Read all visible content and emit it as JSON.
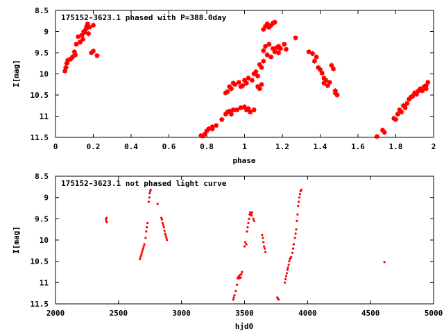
{
  "chart_data": [
    {
      "type": "scatter",
      "title": "175152-3623.1 phased with P=388.0day",
      "xlabel": "phase",
      "ylabel": "I[mag]",
      "xlim": [
        0,
        2
      ],
      "ylim": [
        8.5,
        11.5
      ],
      "y_inverted": true,
      "grid": false,
      "marker_color": "#ff0000",
      "x_ticks": [
        "0",
        "0.2",
        "0.4",
        "0.6",
        "0.8",
        "1",
        "1.2",
        "1.4",
        "1.6",
        "1.8",
        "2"
      ],
      "y_ticks": [
        "8.5",
        "9",
        "9.5",
        "10",
        "10.5",
        "11",
        "11.5"
      ],
      "points": [
        [
          0.05,
          9.93
        ],
        [
          0.055,
          9.85
        ],
        [
          0.06,
          9.75
        ],
        [
          0.065,
          9.68
        ],
        [
          0.08,
          9.65
        ],
        [
          0.09,
          9.6
        ],
        [
          0.1,
          9.48
        ],
        [
          0.105,
          9.55
        ],
        [
          0.11,
          9.3
        ],
        [
          0.12,
          9.12
        ],
        [
          0.13,
          9.25
        ],
        [
          0.14,
          9.08
        ],
        [
          0.145,
          9.18
        ],
        [
          0.15,
          9.0
        ],
        [
          0.155,
          9.02
        ],
        [
          0.16,
          8.95
        ],
        [
          0.165,
          8.88
        ],
        [
          0.17,
          8.82
        ],
        [
          0.175,
          9.05
        ],
        [
          0.18,
          8.9
        ],
        [
          0.2,
          8.85
        ],
        [
          0.19,
          9.5
        ],
        [
          0.2,
          9.46
        ],
        [
          0.22,
          9.57
        ],
        [
          0.77,
          11.46
        ],
        [
          0.78,
          11.47
        ],
        [
          0.79,
          11.42
        ],
        [
          0.8,
          11.35
        ],
        [
          0.81,
          11.3
        ],
        [
          0.83,
          11.25
        ],
        [
          0.85,
          11.22
        ],
        [
          0.83,
          11.3
        ],
        [
          0.88,
          11.08
        ],
        [
          0.9,
          10.95
        ],
        [
          0.91,
          10.9
        ],
        [
          0.92,
          10.88
        ],
        [
          0.93,
          10.95
        ],
        [
          0.94,
          10.85
        ],
        [
          0.9,
          10.45
        ],
        [
          0.91,
          10.42
        ],
        [
          0.92,
          10.3
        ],
        [
          0.93,
          10.35
        ],
        [
          0.94,
          10.22
        ],
        [
          0.95,
          10.25
        ],
        [
          0.97,
          10.2
        ],
        [
          0.98,
          10.3
        ],
        [
          0.99,
          10.28
        ],
        [
          1.0,
          10.15
        ],
        [
          1.01,
          10.22
        ],
        [
          1.02,
          10.1
        ],
        [
          0.96,
          10.85
        ],
        [
          0.98,
          10.8
        ],
        [
          1.0,
          10.78
        ],
        [
          1.01,
          10.85
        ],
        [
          1.02,
          10.82
        ],
        [
          1.03,
          10.9
        ],
        [
          1.05,
          10.85
        ],
        [
          1.04,
          10.15
        ],
        [
          1.05,
          10.0
        ],
        [
          1.06,
          9.95
        ],
        [
          1.07,
          10.05
        ],
        [
          1.08,
          9.78
        ],
        [
          1.09,
          9.85
        ],
        [
          1.07,
          10.3
        ],
        [
          1.08,
          10.35
        ],
        [
          1.09,
          10.25
        ],
        [
          1.1,
          9.7
        ],
        [
          1.1,
          9.45
        ],
        [
          1.11,
          9.35
        ],
        [
          1.12,
          9.55
        ],
        [
          1.13,
          9.3
        ],
        [
          1.14,
          9.6
        ],
        [
          1.15,
          9.4
        ],
        [
          1.16,
          9.48
        ],
        [
          1.17,
          9.38
        ],
        [
          1.18,
          9.5
        ],
        [
          1.18,
          9.35
        ],
        [
          1.19,
          9.4
        ],
        [
          1.1,
          8.95
        ],
        [
          1.11,
          8.88
        ],
        [
          1.12,
          8.82
        ],
        [
          1.13,
          8.9
        ],
        [
          1.14,
          8.85
        ],
        [
          1.15,
          8.8
        ],
        [
          1.16,
          8.78
        ],
        [
          1.21,
          9.3
        ],
        [
          1.22,
          9.42
        ],
        [
          1.27,
          9.15
        ],
        [
          1.34,
          9.48
        ],
        [
          1.36,
          9.52
        ],
        [
          1.37,
          9.7
        ],
        [
          1.38,
          9.6
        ],
        [
          1.39,
          9.85
        ],
        [
          1.4,
          9.9
        ],
        [
          1.41,
          9.98
        ],
        [
          1.42,
          10.1
        ],
        [
          1.42,
          10.22
        ],
        [
          1.43,
          10.15
        ],
        [
          1.44,
          10.28
        ],
        [
          1.45,
          10.2
        ],
        [
          1.46,
          9.8
        ],
        [
          1.47,
          9.88
        ],
        [
          1.48,
          10.4
        ],
        [
          1.49,
          10.5
        ],
        [
          1.48,
          10.45
        ],
        [
          1.7,
          11.48
        ],
        [
          1.73,
          11.33
        ],
        [
          1.74,
          11.38
        ],
        [
          1.79,
          11.05
        ],
        [
          1.8,
          11.08
        ],
        [
          1.81,
          10.95
        ],
        [
          1.82,
          10.85
        ],
        [
          1.83,
          10.9
        ],
        [
          1.84,
          10.75
        ],
        [
          1.85,
          10.8
        ],
        [
          1.86,
          10.7
        ],
        [
          1.87,
          10.6
        ],
        [
          1.88,
          10.55
        ],
        [
          1.89,
          10.52
        ],
        [
          1.9,
          10.45
        ],
        [
          1.91,
          10.48
        ],
        [
          1.92,
          10.4
        ],
        [
          1.93,
          10.35
        ],
        [
          1.94,
          10.4
        ],
        [
          1.95,
          10.3
        ],
        [
          1.96,
          10.35
        ],
        [
          1.97,
          10.2
        ],
        [
          1.96,
          10.28
        ]
      ]
    },
    {
      "type": "scatter",
      "title": "175152-3623.1 not phased light curve",
      "xlabel": "hjd0",
      "ylabel": "I[mag]",
      "xlim": [
        2000,
        5000
      ],
      "ylim": [
        8.5,
        11.5
      ],
      "y_inverted": true,
      "grid": false,
      "marker_color": "#ff0000",
      "x_ticks": [
        "2000",
        "2500",
        "3000",
        "3500",
        "4000",
        "4500",
        "5000"
      ],
      "y_ticks": [
        "8.5",
        "9",
        "9.5",
        "10",
        "10.5",
        "11",
        "11.5"
      ],
      "points": [
        [
          2400,
          9.5
        ],
        [
          2402,
          9.55
        ],
        [
          2405,
          9.48
        ],
        [
          2407,
          9.58
        ],
        [
          2670,
          10.45
        ],
        [
          2675,
          10.4
        ],
        [
          2680,
          10.35
        ],
        [
          2685,
          10.3
        ],
        [
          2690,
          10.25
        ],
        [
          2695,
          10.2
        ],
        [
          2700,
          10.15
        ],
        [
          2705,
          10.1
        ],
        [
          2715,
          9.95
        ],
        [
          2720,
          9.8
        ],
        [
          2725,
          9.7
        ],
        [
          2730,
          9.6
        ],
        [
          2740,
          9.1
        ],
        [
          2745,
          9.0
        ],
        [
          2748,
          8.9
        ],
        [
          2752,
          8.85
        ],
        [
          2755,
          8.82
        ],
        [
          2810,
          9.15
        ],
        [
          2840,
          9.48
        ],
        [
          2845,
          9.52
        ],
        [
          2850,
          9.6
        ],
        [
          2855,
          9.65
        ],
        [
          2860,
          9.7
        ],
        [
          2865,
          9.78
        ],
        [
          2870,
          9.85
        ],
        [
          2875,
          9.9
        ],
        [
          2880,
          9.95
        ],
        [
          2885,
          10.0
        ],
        [
          3410,
          11.4
        ],
        [
          3415,
          11.35
        ],
        [
          3420,
          11.3
        ],
        [
          3430,
          11.2
        ],
        [
          3440,
          11.05
        ],
        [
          3445,
          10.9
        ],
        [
          3450,
          10.88
        ],
        [
          3455,
          10.85
        ],
        [
          3460,
          10.9
        ],
        [
          3465,
          10.82
        ],
        [
          3470,
          10.88
        ],
        [
          3475,
          10.8
        ],
        [
          3480,
          10.75
        ],
        [
          3500,
          10.15
        ],
        [
          3505,
          10.05
        ],
        [
          3515,
          10.1
        ],
        [
          3520,
          9.8
        ],
        [
          3525,
          9.7
        ],
        [
          3530,
          9.6
        ],
        [
          3535,
          9.5
        ],
        [
          3540,
          9.4
        ],
        [
          3545,
          9.35
        ],
        [
          3550,
          9.38
        ],
        [
          3555,
          9.42
        ],
        [
          3560,
          9.35
        ],
        [
          3570,
          9.5
        ],
        [
          3575,
          9.55
        ],
        [
          3640,
          9.88
        ],
        [
          3645,
          9.95
        ],
        [
          3650,
          10.05
        ],
        [
          3655,
          10.15
        ],
        [
          3660,
          10.2
        ],
        [
          3665,
          10.28
        ],
        [
          3760,
          11.35
        ],
        [
          3765,
          11.38
        ],
        [
          3770,
          11.4
        ],
        [
          3820,
          11.0
        ],
        [
          3825,
          10.92
        ],
        [
          3830,
          10.85
        ],
        [
          3835,
          10.78
        ],
        [
          3840,
          10.7
        ],
        [
          3845,
          10.65
        ],
        [
          3850,
          10.58
        ],
        [
          3855,
          10.5
        ],
        [
          3860,
          10.45
        ],
        [
          3865,
          10.42
        ],
        [
          3870,
          10.4
        ],
        [
          3880,
          10.3
        ],
        [
          3885,
          10.2
        ],
        [
          3890,
          10.1
        ],
        [
          3900,
          9.95
        ],
        [
          3905,
          9.85
        ],
        [
          3910,
          9.75
        ],
        [
          3915,
          9.55
        ],
        [
          3920,
          9.4
        ],
        [
          3925,
          9.2
        ],
        [
          3930,
          9.1
        ],
        [
          3935,
          9.0
        ],
        [
          3940,
          8.92
        ],
        [
          3945,
          8.85
        ],
        [
          3950,
          8.82
        ],
        [
          4610,
          10.52
        ]
      ]
    }
  ]
}
